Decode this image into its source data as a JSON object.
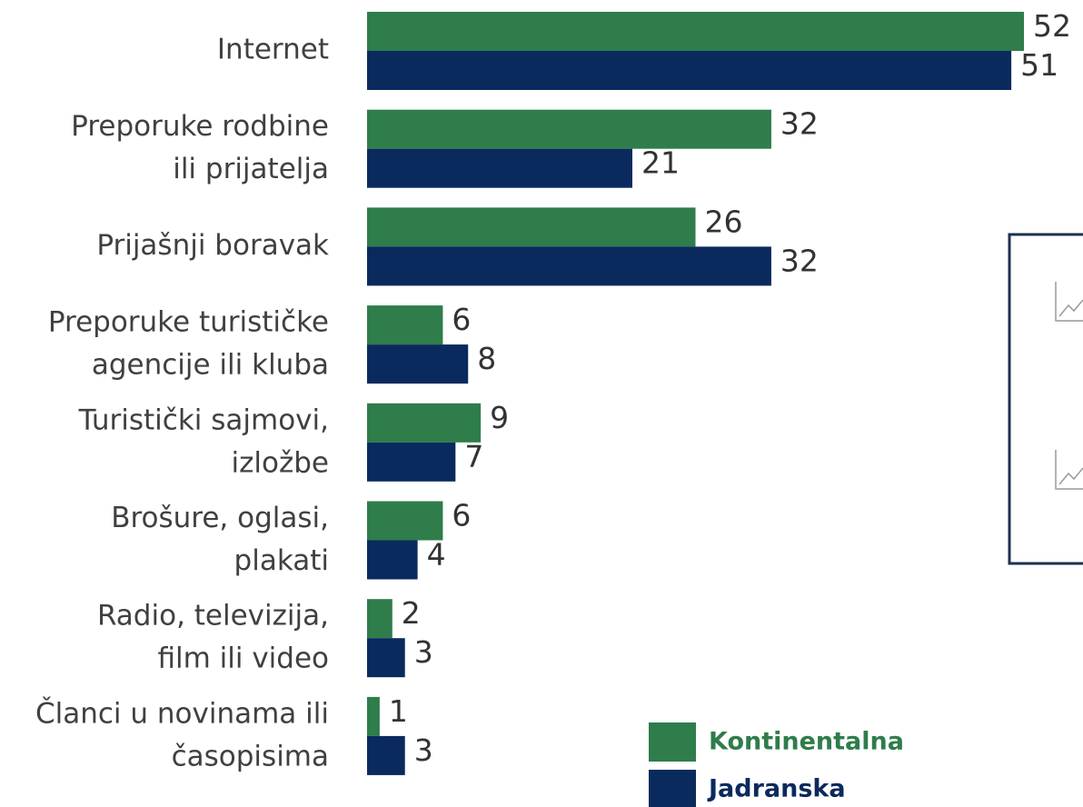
{
  "chart_data": {
    "type": "bar",
    "orientation": "horizontal",
    "categories": [
      "Internet",
      "Preporuke rodbine\nili prijatelja",
      "Prijašnji boravak",
      "Preporuke turističke\nagencije ili kluba",
      "Turistički sajmovi,\nizložbe",
      "Brošure, oglasi,\nplakati",
      "Radio, televizija,\nfilm ili video",
      "Članci u novinama ili\nčasopisima"
    ],
    "series": [
      {
        "name": "Kontinentalna",
        "color": "#2e7d4a",
        "values": [
          52,
          32,
          26,
          6,
          9,
          6,
          2,
          1
        ]
      },
      {
        "name": "Jadranska",
        "color": "#0a2a5e",
        "values": [
          51,
          21,
          32,
          8,
          7,
          4,
          3,
          3
        ]
      }
    ]
  }
}
